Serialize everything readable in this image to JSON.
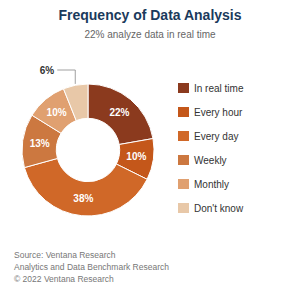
{
  "chart_data": {
    "type": "donut",
    "title": "Frequency of Data Analysis",
    "subtitle": "22% analyze data in real time",
    "categories": [
      "In real time",
      "Every hour",
      "Every day",
      "Weekly",
      "Monthly",
      "Don't know"
    ],
    "values": [
      22,
      10,
      38,
      13,
      10,
      6
    ],
    "value_labels": [
      "22%",
      "10%",
      "38%",
      "13%",
      "10%",
      "6%"
    ],
    "colors": [
      "#8B3A1E",
      "#C4571A",
      "#D06828",
      "#CC7840",
      "#E0A070",
      "#E8C8A8"
    ],
    "data_labels": true,
    "legend": "right",
    "annotations": [
      "Source: Ventana Research",
      "Analytics and Data Benchmark Research",
      "© 2022 Ventana Research"
    ]
  }
}
